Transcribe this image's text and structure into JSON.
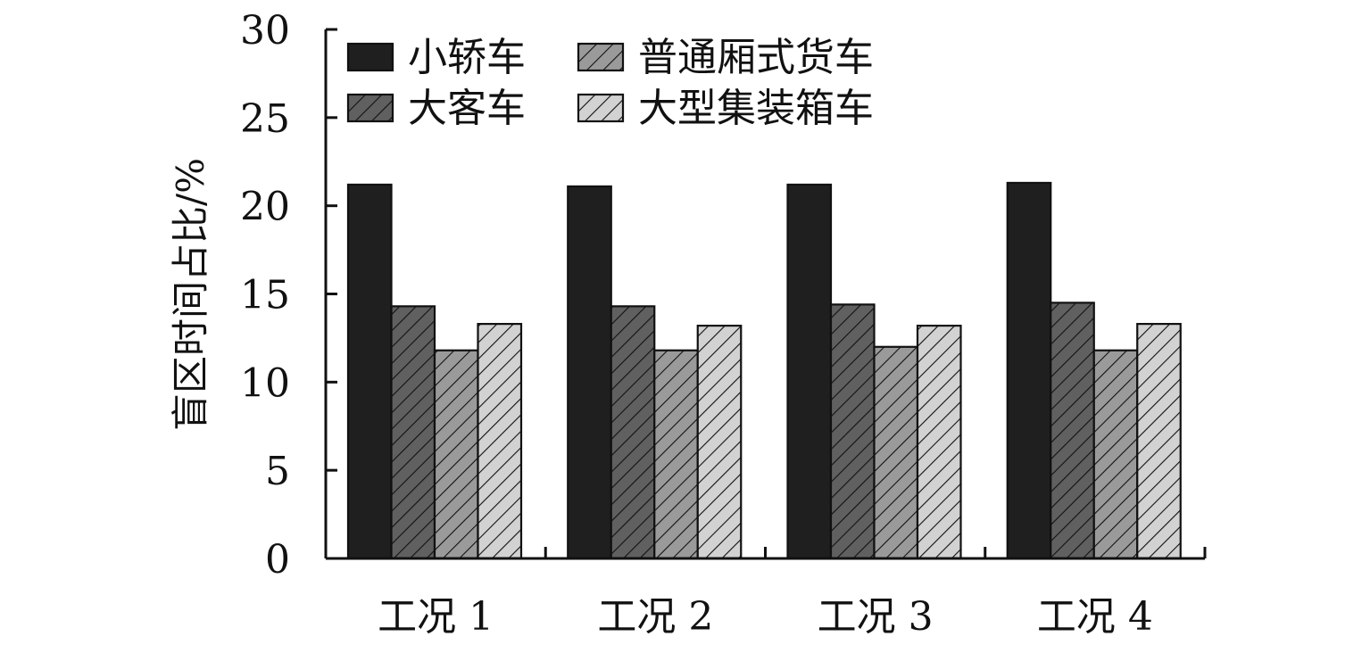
{
  "chart_data": {
    "type": "bar",
    "title": "",
    "xlabel": "",
    "ylabel": "盲区时间占比/%",
    "ylim": [
      0,
      30
    ],
    "yticks": [
      0,
      5,
      10,
      15,
      20,
      25,
      30
    ],
    "categories": [
      "工况 1",
      "工况 2",
      "工况 3",
      "工况 4"
    ],
    "legend_position": "top-left",
    "grid": false,
    "series": [
      {
        "name": "小轿车",
        "fill": "solid",
        "color": "#1f1f1f",
        "values": [
          21.2,
          21.1,
          21.2,
          21.3
        ]
      },
      {
        "name": "大客车",
        "fill": "hatched",
        "color": "#606060",
        "values": [
          14.3,
          14.3,
          14.4,
          14.5
        ]
      },
      {
        "name": "普通厢式货车",
        "fill": "hatched",
        "color": "#9a9a9a",
        "values": [
          11.8,
          11.8,
          12.0,
          11.8
        ]
      },
      {
        "name": "大型集装箱车",
        "fill": "hatched",
        "color": "#d2d2d2",
        "values": [
          13.3,
          13.2,
          13.2,
          13.3
        ]
      }
    ]
  }
}
